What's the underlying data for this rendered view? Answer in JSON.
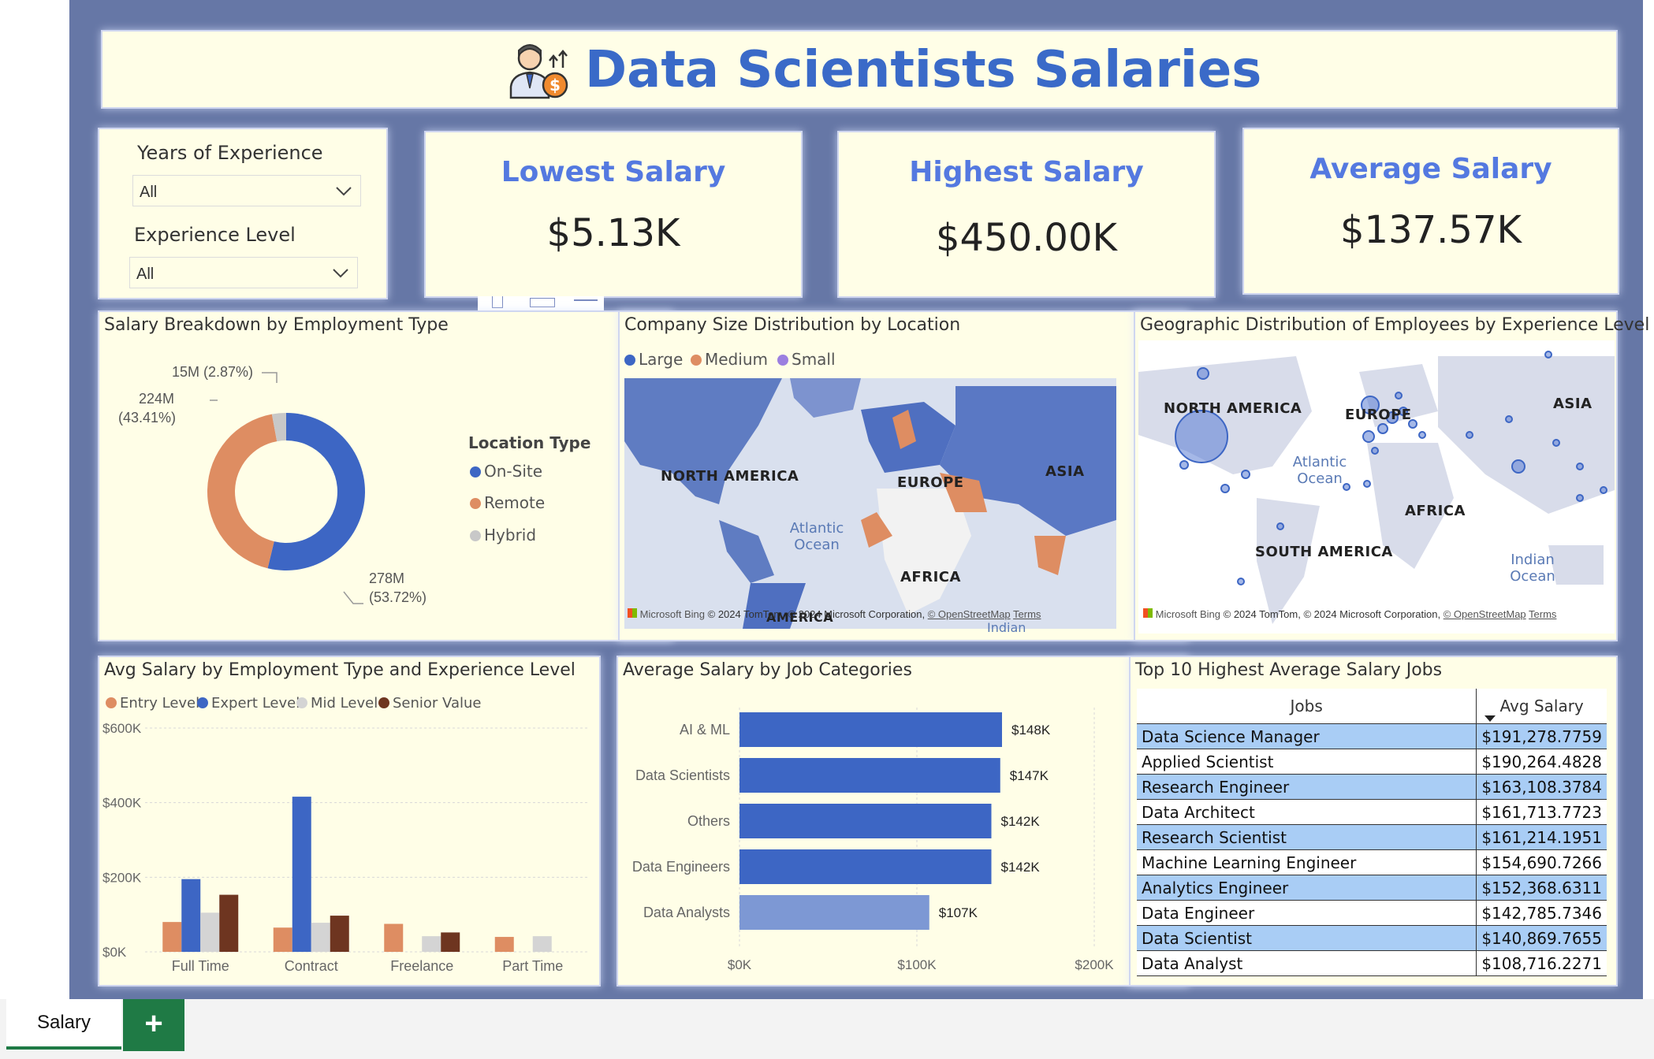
{
  "header": {
    "title": "Data Scientists Salaries",
    "logo_icon": "data-scientist-salary-icon"
  },
  "slicers": {
    "years": {
      "label": "Years of Experience",
      "value": "All"
    },
    "level": {
      "label": "Experience Level",
      "value": "All"
    }
  },
  "kpis": [
    {
      "title": "Lowest Salary",
      "value": "$5.13K"
    },
    {
      "title": "Highest Salary",
      "value": "$450.00K"
    },
    {
      "title": "Average Salary",
      "value": "$137.57K"
    }
  ],
  "donut": {
    "title": "Salary Breakdown by Employment Type",
    "legend_title": "Location Type",
    "labels": {
      "hybrid": "15M (2.87%)",
      "remote_value": "224M",
      "remote_pct": "(43.41%)",
      "onsite_value": "278M",
      "onsite_pct": "(53.72%)"
    }
  },
  "company_map": {
    "title": "Company Size Distribution by Location",
    "legend": [
      "Large",
      "Medium",
      "Small"
    ],
    "labels": [
      "NORTH AMERICA",
      "EUROPE",
      "ASIA",
      "AFRICA",
      "AMERICA"
    ],
    "oceans": [
      "Atlantic Ocean",
      "Indian"
    ],
    "bing": "Microsoft Bing",
    "attribution": "© 2024 TomTom, © 2024 Microsoft Corporation,",
    "osm": "© OpenStreetMap",
    "terms": "Terms"
  },
  "geo_map": {
    "title": "Geographic Distribution of Employees by Experience Level",
    "labels": [
      "NORTH AMERICA",
      "EUROPE",
      "ASIA",
      "AFRICA",
      "SOUTH AMERICA"
    ],
    "oceans": [
      "Atlantic Ocean",
      "Indian Ocean"
    ],
    "bing": "Microsoft Bing",
    "attribution": "© 2024 TomTom, © 2024 Microsoft Corporation,",
    "osm": "© OpenStreetMap",
    "terms": "Terms"
  },
  "top10": {
    "title": "Top 10 Highest Average Salary Jobs",
    "headers": [
      "Jobs",
      "Avg Salary"
    ],
    "rows": [
      [
        "Data Science Manager",
        "$191,278.7759"
      ],
      [
        "Applied Scientist",
        "$190,264.4828"
      ],
      [
        "Research Engineer",
        "$163,108.3784"
      ],
      [
        "Data Architect",
        "$161,713.7723"
      ],
      [
        "Research Scientist",
        "$161,214.1951"
      ],
      [
        "Machine Learning Engineer",
        "$154,690.7266"
      ],
      [
        "Analytics Engineer",
        "$152,368.6311"
      ],
      [
        "Data Engineer",
        "$142,785.7346"
      ],
      [
        "Data Scientist",
        "$140,869.7655"
      ],
      [
        "Data Analyst",
        "$108,716.2271"
      ]
    ]
  },
  "colors": {
    "onsite": "#3d66c4",
    "remote": "#de8d62",
    "hybrid": "#c8c8c8",
    "entry": "#de8d62",
    "expert": "#3d66c4",
    "mid": "#d4d4d4",
    "senior": "#6e3520",
    "bar": "#3d66c4",
    "bar_light": "#7d98d4",
    "large": "#3d66c4",
    "medium": "#de8d62",
    "small": "#9b7fe0"
  },
  "chart_data": [
    {
      "type": "pie",
      "title": "Salary Breakdown by Employment Type",
      "legend_title": "Location Type",
      "categories": [
        "On-Site",
        "Remote",
        "Hybrid"
      ],
      "values": [
        278,
        224,
        15
      ],
      "percents": [
        53.72,
        43.41,
        2.87
      ],
      "legend_position": "right"
    },
    {
      "type": "bar",
      "title": "Avg Salary by Employment Type and Experience Level",
      "categories": [
        "Full Time",
        "Contract",
        "Freelance",
        "Part Time"
      ],
      "series": [
        {
          "name": "Entry Level",
          "values": [
            80000,
            65000,
            75000,
            40000
          ]
        },
        {
          "name": "Expert Level",
          "values": [
            195000,
            416000,
            0,
            0
          ]
        },
        {
          "name": "Mid Level",
          "values": [
            105000,
            78000,
            42000,
            42000
          ]
        },
        {
          "name": "Senior Value",
          "values": [
            153000,
            97000,
            52000,
            0
          ]
        }
      ],
      "ylim": [
        0,
        600000
      ],
      "ytick_labels": [
        "$0K",
        "$200K",
        "$400K",
        "$600K"
      ],
      "ytick_values": [
        0,
        200000,
        400000,
        600000
      ],
      "legend_position": "top-left",
      "grid": true
    },
    {
      "type": "bar",
      "orientation": "horizontal",
      "title": "Average Salary by Job Categories",
      "categories": [
        "AI & ML",
        "Data Scientists",
        "Others",
        "Data Engineers",
        "Data Analysts"
      ],
      "values": [
        148000,
        147000,
        142000,
        142000,
        107000
      ],
      "data_labels": [
        "$148K",
        "$147K",
        "$142K",
        "$142K",
        "$107K"
      ],
      "xlim": [
        0,
        200000
      ],
      "xtick_labels": [
        "$0K",
        "$100K",
        "$200K"
      ],
      "xtick_values": [
        0,
        100000,
        200000
      ]
    }
  ],
  "tabs": {
    "sheet": "Salary",
    "add": "+"
  }
}
